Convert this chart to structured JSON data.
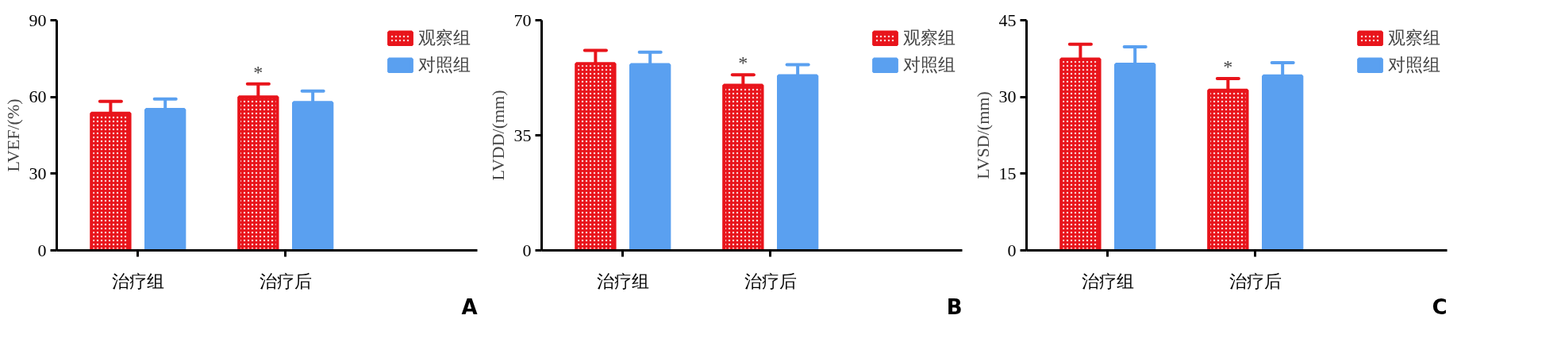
{
  "chart_data": [
    {
      "type": "bar",
      "ylabel": "LVEF/(%)",
      "categories": [
        "治疗组",
        "治疗后"
      ],
      "ylim": [
        0,
        90
      ],
      "yticks": [
        0,
        30,
        60,
        90
      ],
      "grid": false,
      "legend": "top right",
      "series": [
        {
          "name": "观察组",
          "color": "#e8141b",
          "values": [
            53.6,
            60.0
          ],
          "errors": [
            4.7,
            5.1
          ]
        },
        {
          "name": "对照组",
          "color": "#5aa0f0",
          "values": [
            55.1,
            57.8
          ],
          "errors": [
            4.1,
            4.5
          ]
        }
      ],
      "annotations": [
        "*",
        "A"
      ]
    },
    {
      "type": "bar",
      "ylabel": "LVDD/(mm)",
      "categories": [
        "治疗组",
        "治疗后"
      ],
      "ylim": [
        0,
        70
      ],
      "yticks": [
        0,
        35,
        70
      ],
      "grid": false,
      "legend": "top right",
      "series": [
        {
          "name": "观察组",
          "color": "#e8141b",
          "values": [
            56.8,
            50.2
          ],
          "errors": [
            4.0,
            3.2
          ]
        },
        {
          "name": "对照组",
          "color": "#5aa0f0",
          "values": [
            56.5,
            53.1
          ],
          "errors": [
            3.8,
            3.4
          ]
        }
      ],
      "annotations": [
        "*",
        "B"
      ]
    },
    {
      "type": "bar",
      "ylabel": "LVSD/(mm)",
      "categories": [
        "治疗组",
        "治疗后"
      ],
      "ylim": [
        0,
        45
      ],
      "yticks": [
        0,
        15,
        30,
        45
      ],
      "grid": false,
      "legend": "top right",
      "series": [
        {
          "name": "观察组",
          "color": "#e8141b",
          "values": [
            37.4,
            31.3
          ],
          "errors": [
            2.9,
            2.3
          ]
        },
        {
          "name": "对照组",
          "color": "#5aa0f0",
          "values": [
            36.4,
            34.1
          ],
          "errors": [
            3.4,
            2.6
          ]
        }
      ],
      "annotations": [
        "*",
        "C"
      ]
    }
  ]
}
